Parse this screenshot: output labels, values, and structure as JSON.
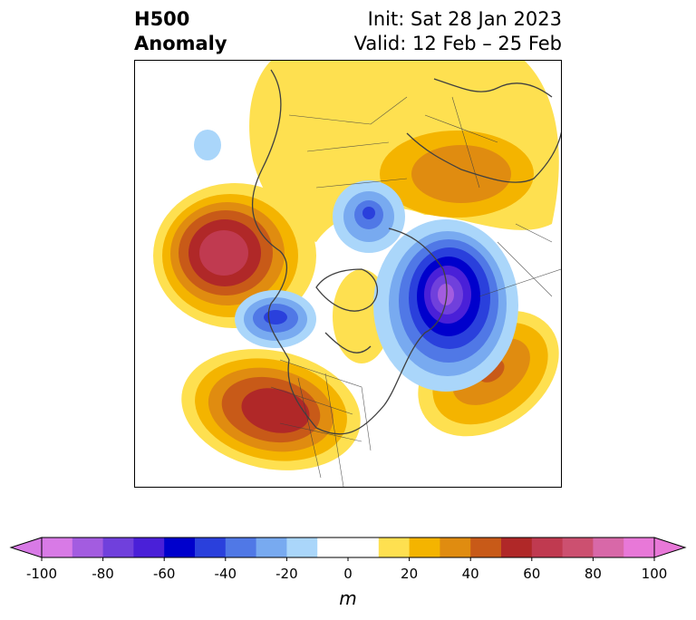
{
  "title": {
    "line1": "H500",
    "line2": "Anomaly",
    "init": "Init: Sat 28 Jan 2023",
    "valid": "Valid: 12 Feb – 25 Feb"
  },
  "colorbar": {
    "min": -100,
    "max": 100,
    "unit": "m",
    "ticks": [
      "-100",
      "-80",
      "-60",
      "-40",
      "-20",
      "0",
      "20",
      "40",
      "60",
      "80",
      "100"
    ],
    "colors": [
      "#d87ae6",
      "#a35ce0",
      "#7040dc",
      "#4a20d8",
      "#0000cc",
      "#2a40dc",
      "#5078e6",
      "#78aaf0",
      "#aad6fa",
      "#ffffff",
      "#ffffff",
      "#fee050",
      "#f4b400",
      "#e08c10",
      "#c85a18",
      "#b02828",
      "#c03a50",
      "#cc5070",
      "#d868a8",
      "#e878d8"
    ]
  }
}
